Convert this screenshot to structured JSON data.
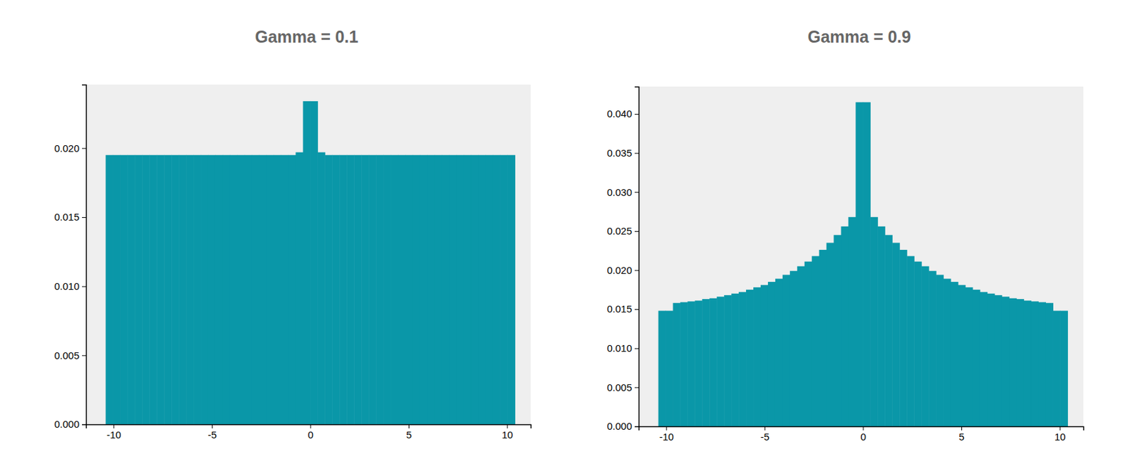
{
  "chart_data": [
    {
      "type": "histogram",
      "title": "Gamma = 0.1",
      "color": "#0a97a8",
      "bins": [
        -10.4,
        -10.029,
        -9.657,
        -9.286,
        -8.914,
        -8.543,
        -8.171,
        -7.8,
        -7.429,
        -7.057,
        -6.686,
        -6.314,
        -5.943,
        -5.571,
        -5.2,
        -4.829,
        -4.457,
        -4.086,
        -3.714,
        -3.343,
        -2.971,
        -2.6,
        -2.229,
        -1.857,
        -1.486,
        -1.114,
        -0.743,
        -0.371,
        0,
        0.371,
        0.743,
        1.114,
        1.486,
        1.857,
        2.229,
        2.6,
        2.971,
        3.343,
        3.714,
        4.086,
        4.457,
        4.829,
        5.2,
        5.571,
        5.943,
        6.314,
        6.686,
        7.057,
        7.429,
        7.8,
        8.171,
        8.543,
        8.914,
        9.286,
        9.657,
        10.029,
        10.4
      ],
      "values": [
        0.0195,
        0.0195,
        0.0195,
        0.0195,
        0.0195,
        0.0195,
        0.0195,
        0.0195,
        0.0195,
        0.0195,
        0.0195,
        0.0195,
        0.0195,
        0.0195,
        0.0195,
        0.0195,
        0.0195,
        0.0195,
        0.0195,
        0.0195,
        0.0195,
        0.0195,
        0.0195,
        0.0195,
        0.0195,
        0.0195,
        0.0197,
        0.0234,
        0.0234,
        0.0197,
        0.0195,
        0.0195,
        0.0195,
        0.0195,
        0.0195,
        0.0195,
        0.0195,
        0.0195,
        0.0195,
        0.0195,
        0.0195,
        0.0195,
        0.0195,
        0.0195,
        0.0195,
        0.0195,
        0.0195,
        0.0195,
        0.0195,
        0.0195,
        0.0195,
        0.0195,
        0.0195,
        0.0195,
        0.0195,
        0.0195
      ],
      "xlim": [
        -11.4,
        11.2
      ],
      "ylim": [
        0,
        0.0246
      ],
      "xticks": [
        -10,
        -5,
        0,
        5,
        10
      ],
      "yticks": [
        {
          "value": 0,
          "label": "0.000"
        },
        {
          "value": 0.005,
          "label": "0.005"
        },
        {
          "value": 0.01,
          "label": "0.010"
        },
        {
          "value": 0.015,
          "label": "0.015"
        },
        {
          "value": 0.02,
          "label": "0.020"
        }
      ]
    },
    {
      "type": "histogram",
      "title": "Gamma = 0.9",
      "color": "#0a97a8",
      "bins": [
        -10.4,
        -10.029,
        -9.657,
        -9.286,
        -8.914,
        -8.543,
        -8.171,
        -7.8,
        -7.429,
        -7.057,
        -6.686,
        -6.314,
        -5.943,
        -5.571,
        -5.2,
        -4.829,
        -4.457,
        -4.086,
        -3.714,
        -3.343,
        -2.971,
        -2.6,
        -2.229,
        -1.857,
        -1.486,
        -1.114,
        -0.743,
        -0.371,
        0,
        0.371,
        0.743,
        1.114,
        1.486,
        1.857,
        2.229,
        2.6,
        2.971,
        3.343,
        3.714,
        4.086,
        4.457,
        4.829,
        5.2,
        5.571,
        5.943,
        6.314,
        6.686,
        7.057,
        7.429,
        7.8,
        8.171,
        8.543,
        8.914,
        9.286,
        9.657,
        10.029,
        10.4
      ],
      "values": [
        0.0148,
        0.0148,
        0.0158,
        0.0159,
        0.016,
        0.0161,
        0.0163,
        0.0164,
        0.0166,
        0.0168,
        0.017,
        0.0172,
        0.0175,
        0.0178,
        0.0181,
        0.0185,
        0.0189,
        0.0194,
        0.0199,
        0.0205,
        0.0211,
        0.0218,
        0.0226,
        0.0235,
        0.0245,
        0.0256,
        0.0268,
        0.0415,
        0.0415,
        0.0268,
        0.0256,
        0.0245,
        0.0235,
        0.0226,
        0.0218,
        0.0211,
        0.0205,
        0.0199,
        0.0194,
        0.0189,
        0.0185,
        0.0181,
        0.0178,
        0.0175,
        0.0172,
        0.017,
        0.0168,
        0.0166,
        0.0164,
        0.0163,
        0.0161,
        0.016,
        0.0159,
        0.0158,
        0.0148,
        0.0148
      ],
      "xlim": [
        -11.4,
        11.2
      ],
      "ylim": [
        0,
        0.0435
      ],
      "xticks": [
        -10,
        -5,
        0,
        5,
        10
      ],
      "yticks": [
        {
          "value": 0,
          "label": "0.000"
        },
        {
          "value": 0.005,
          "label": "0.005"
        },
        {
          "value": 0.01,
          "label": "0.010"
        },
        {
          "value": 0.015,
          "label": "0.015"
        },
        {
          "value": 0.02,
          "label": "0.020"
        },
        {
          "value": 0.025,
          "label": "0.025"
        },
        {
          "value": 0.03,
          "label": "0.030"
        },
        {
          "value": 0.035,
          "label": "0.035"
        },
        {
          "value": 0.04,
          "label": "0.040"
        }
      ]
    }
  ]
}
